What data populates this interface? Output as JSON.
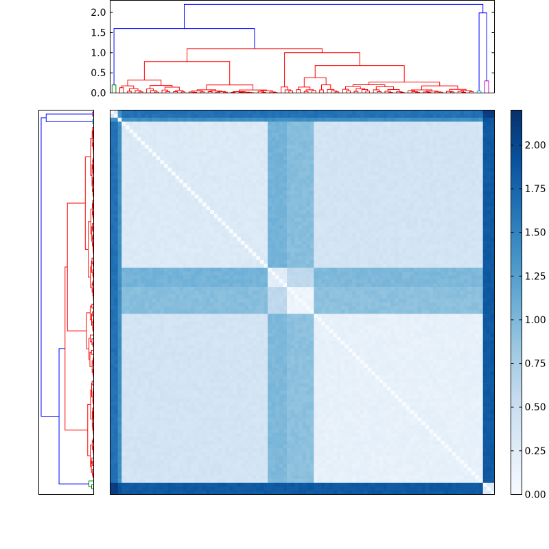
{
  "chart_data": [
    {
      "type": "dendrogram",
      "panel": "top",
      "orientation": "top",
      "ylim": [
        0,
        2.3
      ],
      "yticks": [
        "0.0",
        "0.5",
        "1.0",
        "1.5",
        "2.0"
      ],
      "leaf_count": 100,
      "cluster_colors": {
        "above_threshold": "#0000ff",
        "cluster_1": "#008000",
        "cluster_2": "#ff0000",
        "cluster_3": "#00bfbf",
        "cluster_4": "#bf00bf"
      },
      "root_merge_height": 2.2,
      "major_merges": [
        {
          "height": 2.2,
          "color": "#0000ff"
        },
        {
          "height": 1.6,
          "color": "#0000ff"
        },
        {
          "height": 1.99,
          "color": "#0000ff"
        },
        {
          "height": 1.1,
          "color": "#ff0000"
        },
        {
          "height": 0.78,
          "color": "#ff0000"
        },
        {
          "height": 0.68,
          "color": "#ff0000"
        }
      ]
    },
    {
      "type": "dendrogram",
      "panel": "left",
      "orientation": "left",
      "leaf_count": 100,
      "ticks_shown": false
    },
    {
      "type": "heatmap",
      "panel": "main",
      "colormap": "Blues",
      "rows": 100,
      "cols": 100,
      "value_range": [
        0.0,
        2.2
      ],
      "block_summary": [
        {
          "block": "cluster A (leaves 3-41)",
          "within_distance": 0.15,
          "to_cluster_B": 0.35
        },
        {
          "block": "sparse group (leaves 41-46)",
          "typical_distance": 0.9
        },
        {
          "block": "outliers (leaves 0-2, 97-99)",
          "typical_distance": 1.9
        }
      ],
      "diagonal": 0.0
    },
    {
      "type": "colorbar",
      "colormap": "Blues",
      "range": [
        0.0,
        2.2
      ],
      "ticks": [
        "0.00",
        "0.25",
        "0.50",
        "0.75",
        "1.00",
        "1.25",
        "1.50",
        "1.75",
        "2.00"
      ]
    }
  ]
}
